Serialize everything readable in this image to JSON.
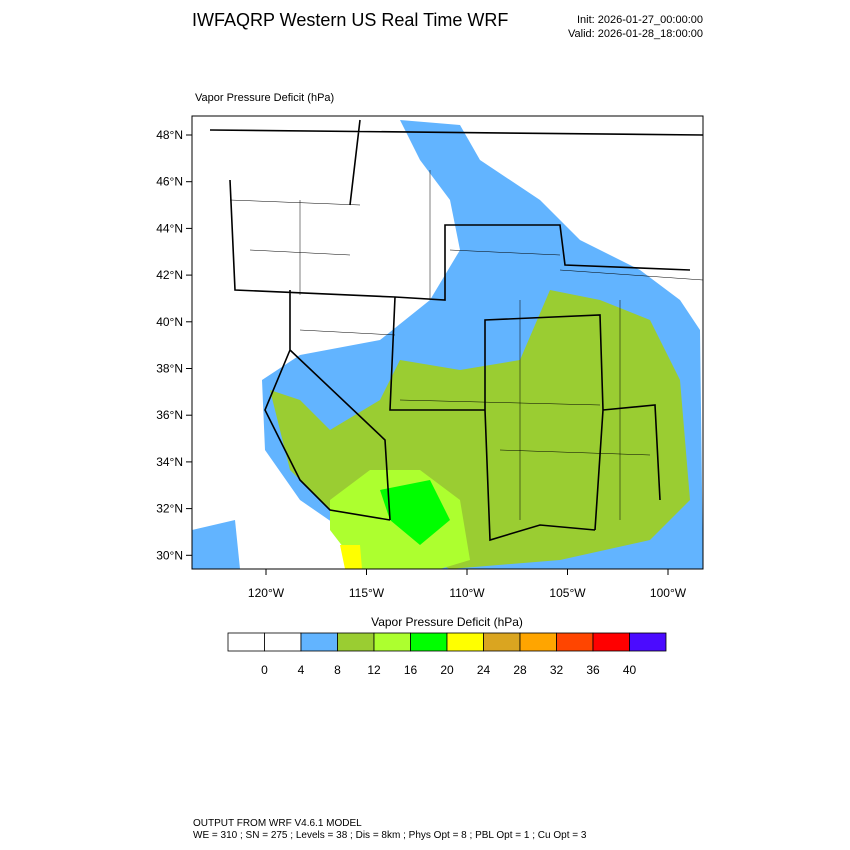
{
  "header": {
    "title": "IWFAQRP Western US Real Time WRF",
    "init": "Init: 2026-01-27_00:00:00",
    "valid": "Valid: 2026-01-28_18:00:00"
  },
  "map": {
    "label": "Vapor Pressure Deficit   (hPa)",
    "lat_labels": [
      "48°N",
      "46°N",
      "44°N",
      "42°N",
      "40°N",
      "38°N",
      "36°N",
      "34°N",
      "32°N",
      "30°N"
    ],
    "lon_labels": [
      "120°W",
      "115°W",
      "110°W",
      "105°W",
      "100°W"
    ]
  },
  "colorbar": {
    "title": "Vapor Pressure Deficit  (hPa)",
    "colors": [
      "#ffffff",
      "#ffffff",
      "#62b4ff",
      "#9acd32",
      "#adff2f",
      "#00ff00",
      "#ffff00",
      "#daa520",
      "#ffa500",
      "#ff4500",
      "#ff0000",
      "#4b0bff"
    ],
    "labels": [
      "0",
      "4",
      "8",
      "12",
      "16",
      "20",
      "24",
      "28",
      "32",
      "36",
      "40"
    ]
  },
  "footer": {
    "line1": "OUTPUT FROM WRF V4.6.1 MODEL",
    "line2": "WE = 310 ; SN = 275 ; Levels = 38 ; Dis = 8km ; Phys Opt = 8 ; PBL Opt = 1 ; Cu Opt = 3"
  }
}
